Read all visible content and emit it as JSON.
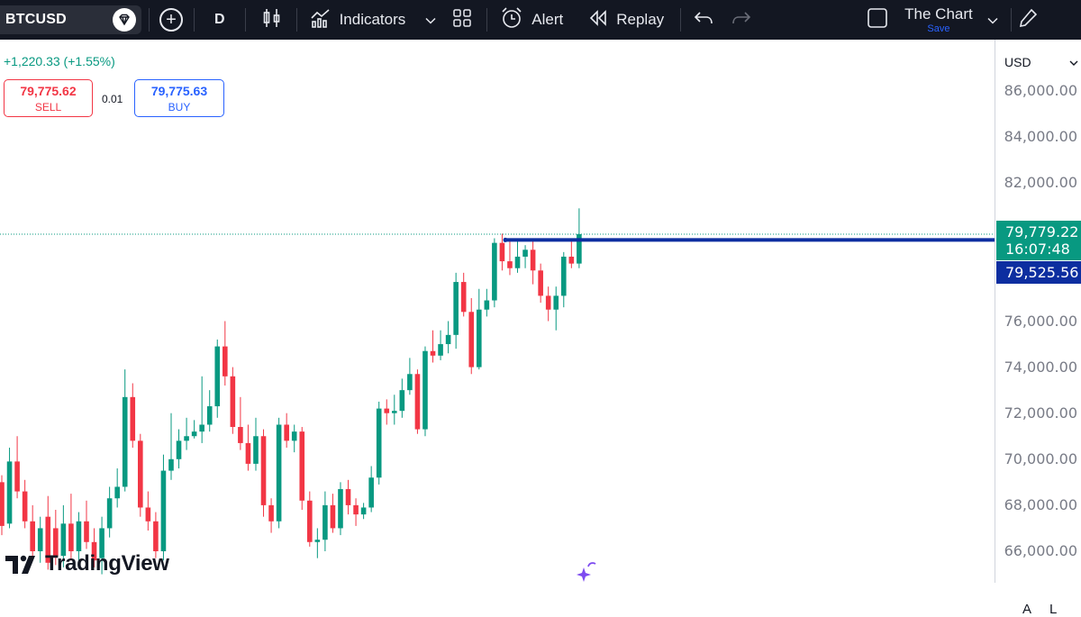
{
  "toolbar": {
    "symbol": "BTCUSD",
    "interval": "D",
    "indicators_label": "Indicators",
    "alert_label": "Alert",
    "replay_label": "Replay",
    "chart_name": "The Chart",
    "save_label": "Save"
  },
  "legend": {
    "change": "+1,220.33 (+1.55%)",
    "sell_price": "79,775.62",
    "sell_label": "SELL",
    "spread": "0.01",
    "buy_price": "79,775.63",
    "buy_label": "BUY"
  },
  "price_scale": {
    "currency": "USD",
    "ticks": [
      "86,000.00",
      "84,000.00",
      "82,000.00",
      "76,000.00",
      "74,000.00",
      "72,000.00",
      "70,000.00",
      "68,000.00",
      "66,000.00"
    ],
    "last_price": "79,779.22",
    "countdown": "16:07:48",
    "line_price": "79,525.56"
  },
  "logo_text": "TradingView",
  "bottom_buttons": {
    "auto": "A",
    "log": "L"
  },
  "colors": {
    "up": "#089981",
    "down": "#f23645",
    "line": "#0d2ea0",
    "toolbar_bg": "#131722"
  },
  "chart_data": {
    "type": "candlestick",
    "horizontal_line": 79525.56,
    "last_price": 79779.22,
    "ylim": [
      65800,
      86800
    ],
    "candles": [
      [
        0,
        69000,
        67100,
        69300,
        66700
      ],
      [
        0,
        67200,
        69900,
        70500,
        67000
      ],
      [
        0,
        69900,
        68600,
        71000,
        68300
      ],
      [
        0,
        68600,
        67300,
        69100,
        67000
      ],
      [
        0,
        67300,
        66000,
        68000,
        65800
      ],
      [
        0,
        66000,
        67000,
        67500,
        65500
      ],
      [
        1,
        67500,
        65500,
        68400,
        65200
      ],
      [
        1,
        67000,
        65800,
        67800,
        65400
      ],
      [
        1,
        65800,
        67200,
        68000,
        65300
      ],
      [
        1,
        67200,
        66000,
        68500,
        65600
      ],
      [
        1,
        66000,
        67300,
        67700,
        65500
      ],
      [
        0,
        67300,
        66400,
        68200,
        66100
      ],
      [
        0,
        66400,
        65600,
        67000,
        65300
      ],
      [
        0,
        65700,
        67000,
        67500,
        65000
      ],
      [
        0,
        67000,
        68300,
        68800,
        66600
      ],
      [
        0,
        68300,
        68800,
        69600,
        67900
      ],
      [
        0,
        68800,
        72700,
        73900,
        68600
      ],
      [
        0,
        72700,
        70800,
        73300,
        70500
      ],
      [
        0,
        70800,
        67900,
        71100,
        67500
      ],
      [
        0,
        67900,
        67300,
        68600,
        66900
      ],
      [
        0,
        67300,
        66000,
        67700,
        65700
      ],
      [
        0,
        66000,
        69500,
        70200,
        65600
      ],
      [
        0,
        69500,
        70000,
        72000,
        69100
      ],
      [
        0,
        70000,
        70800,
        71300,
        69600
      ],
      [
        0,
        70800,
        71000,
        71800,
        70400
      ],
      [
        0,
        71000,
        71200,
        71700,
        70900
      ],
      [
        0,
        71200,
        71500,
        73600,
        70700
      ],
      [
        0,
        71500,
        72300,
        73000,
        71200
      ],
      [
        0,
        72300,
        74900,
        75200,
        71800
      ],
      [
        0,
        74900,
        73600,
        76000,
        73200
      ],
      [
        0,
        73600,
        71400,
        74000,
        71100
      ],
      [
        0,
        71400,
        70700,
        72700,
        70400
      ],
      [
        0,
        70700,
        69800,
        71500,
        69500
      ],
      [
        0,
        69800,
        71000,
        71800,
        69500
      ],
      [
        0,
        71000,
        68000,
        71300,
        67500
      ],
      [
        0,
        68000,
        67300,
        68300,
        66800
      ],
      [
        0,
        67300,
        71500,
        71800,
        67000
      ],
      [
        0,
        71500,
        70800,
        72000,
        70500
      ],
      [
        0,
        70800,
        71200,
        71500,
        70300
      ],
      [
        0,
        71200,
        68200,
        71400,
        67800
      ],
      [
        0,
        68200,
        66400,
        68600,
        66200
      ],
      [
        0,
        66400,
        66500,
        67000,
        65700
      ],
      [
        0,
        66500,
        68000,
        68600,
        66000
      ],
      [
        0,
        68000,
        67000,
        68500,
        66800
      ],
      [
        0,
        67000,
        68700,
        69000,
        66700
      ],
      [
        0,
        68700,
        68000,
        69100,
        67600
      ],
      [
        0,
        68000,
        67600,
        68300,
        67100
      ],
      [
        0,
        67600,
        67900,
        68100,
        67400
      ],
      [
        0,
        67900,
        69200,
        69700,
        67700
      ],
      [
        0,
        69200,
        72200,
        72500,
        68900
      ],
      [
        0,
        72200,
        72000,
        72600,
        71500
      ],
      [
        0,
        72000,
        72100,
        72800,
        71500
      ],
      [
        0,
        72100,
        73000,
        73500,
        71800
      ],
      [
        0,
        73000,
        73700,
        74400,
        72800
      ],
      [
        0,
        73700,
        71300,
        73900,
        71100
      ],
      [
        0,
        71300,
        74700,
        74900,
        71000
      ],
      [
        0,
        74700,
        74500,
        75600,
        74200
      ],
      [
        0,
        74500,
        75000,
        75600,
        74300
      ],
      [
        0,
        75000,
        75400,
        76000,
        74600
      ],
      [
        0,
        75400,
        77700,
        78100,
        74800
      ],
      [
        0,
        77700,
        76400,
        78100,
        76200
      ],
      [
        0,
        76400,
        74000,
        77000,
        73700
      ],
      [
        0,
        74000,
        76500,
        77400,
        73900
      ],
      [
        0,
        76500,
        76900,
        77400,
        76200
      ],
      [
        0,
        76900,
        79400,
        79600,
        76600
      ],
      [
        0,
        79400,
        78600,
        79800,
        78200
      ],
      [
        0,
        78600,
        78300,
        79600,
        78000
      ],
      [
        0,
        78300,
        78800,
        79600,
        78100
      ],
      [
        0,
        78800,
        79100,
        79300,
        78300
      ],
      [
        0,
        79100,
        78200,
        79500,
        77600
      ],
      [
        0,
        78200,
        77100,
        78500,
        76800
      ],
      [
        0,
        77100,
        76500,
        77500,
        76000
      ],
      [
        0,
        76500,
        77100,
        77500,
        75600
      ],
      [
        0,
        77100,
        78800,
        79000,
        76600
      ],
      [
        0,
        78800,
        78500,
        79500,
        78300
      ],
      [
        0,
        78500,
        79779.22,
        80900,
        78300
      ]
    ]
  }
}
